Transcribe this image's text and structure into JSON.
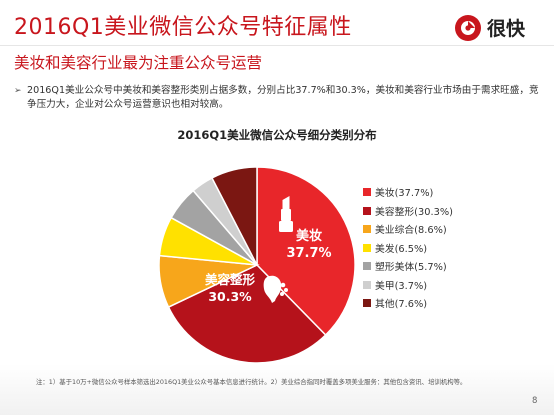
{
  "header": {
    "title": "2016Q1美业微信公众号特征属性",
    "subtitle": "美妆和美容行业最为注重公众号运营",
    "logo_text": "很快"
  },
  "bullet_text": "2016Q1美业公众号中美妆和美容整形类别占据多数，分别占比37.7%和30.3%，美妆和美容行业市场由于需求旺盛，竞争压力大，企业对公众号运营意识也相对较高。",
  "footnote": "注：1）基于10万+微信公众号样本筛选出2016Q1美业公众号基本信息进行统计。2）美业综合指同时覆盖多项美业服务：其他包含资讯、培训机构等。",
  "page_number": "8",
  "colors": {
    "brand_red": "#c8161d",
    "series": [
      "#e8262a",
      "#b5121b",
      "#f7a61b",
      "#ffe100",
      "#a3a3a3",
      "#cfcfcf",
      "#7b1712"
    ]
  },
  "icons": [
    "lipstick-icon",
    "woman-silhouette-icon",
    "logo-mark-icon"
  ],
  "chart_data": {
    "type": "pie",
    "title": "2016Q1美业微信公众号细分类别分布",
    "categories": [
      "美妆",
      "美容整形",
      "美业综合",
      "美发",
      "塑形美体",
      "美甲",
      "其他"
    ],
    "values": [
      37.7,
      30.3,
      8.6,
      6.5,
      5.7,
      3.7,
      7.6
    ],
    "legend_labels": [
      "美妆(37.7%)",
      "美容整形(30.3%)",
      "美业综合(8.6%)",
      "美发(6.5%)",
      "塑形美体(5.7%)",
      "美甲(3.7%)",
      "其他(7.6%)"
    ],
    "data_labels": [
      {
        "name": "美妆",
        "value": "37.7%"
      },
      {
        "name": "美容整形",
        "value": "30.3%"
      }
    ],
    "legend_position": "right",
    "grid": false
  }
}
